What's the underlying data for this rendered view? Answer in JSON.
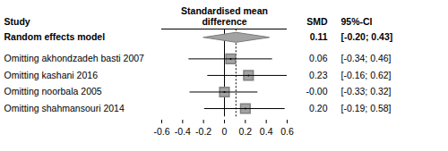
{
  "chart_data": {
    "type": "forest",
    "headers": {
      "study": "Study",
      "effect": "Standardised mean\ndifference",
      "value": "SMD",
      "ci": "95%-CI"
    },
    "categories": [
      "Omitting shahmansouri 2014",
      "Omitting noorbala 2005",
      "Omitting kashani 2016",
      "Omitting akhondzadeh basti 2007"
    ],
    "values": [
      0.2,
      0,
      0.23,
      0.06
    ],
    "value_labels": [
      "0.20",
      "-0.00",
      "0.23",
      "0.06"
    ],
    "lower": [
      -0.19,
      -0.33,
      -0.16,
      -0.34
    ],
    "upper": [
      0.58,
      0.32,
      0.62,
      0.46
    ],
    "ci_labels": [
      "[-0.19; 0.58]",
      "[-0.33; 0.32]",
      "[-0.16; 0.62]",
      "[-0.34; 0.46]"
    ],
    "summary": {
      "label": "Random effects model",
      "value": 0.11,
      "value_label": "0.11",
      "lower": -0.2,
      "upper": 0.43,
      "ci_label": "[-0.20; 0.43]"
    },
    "reference": 0,
    "xlim": [
      -0.6,
      0.6
    ],
    "xticks": [
      -0.6,
      -0.4,
      -0.2,
      0,
      0.2,
      0.4,
      0.6
    ],
    "color": "#a3a3a3"
  }
}
